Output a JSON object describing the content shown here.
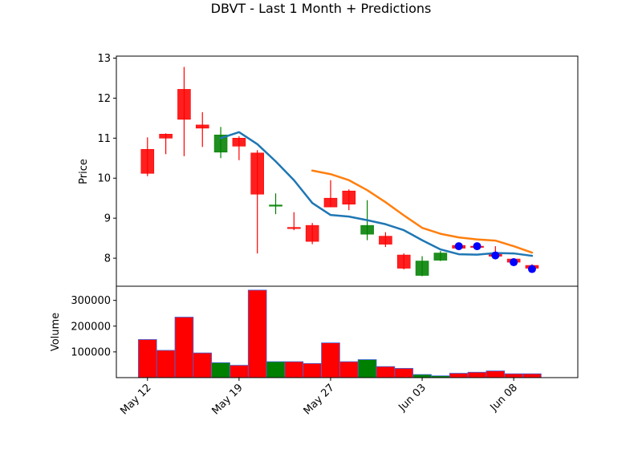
{
  "chart_data": {
    "type": "candlestick",
    "title": "DBVT - Last 1 Month + Predictions",
    "price_panel": {
      "ylabel": "Price",
      "ylim": [
        7.3,
        13.05
      ],
      "yticks": [
        8,
        9,
        10,
        11,
        12,
        13
      ],
      "candles": [
        {
          "x": 0,
          "open": 10.72,
          "high": 11.02,
          "low": 10.05,
          "close": 10.12
        },
        {
          "x": 1,
          "open": 11.1,
          "high": 11.12,
          "low": 10.6,
          "close": 11.0
        },
        {
          "x": 2,
          "open": 12.22,
          "high": 12.78,
          "low": 10.55,
          "close": 11.47
        },
        {
          "x": 3,
          "open": 11.33,
          "high": 11.65,
          "low": 10.78,
          "close": 11.25
        },
        {
          "x": 4,
          "open": 10.65,
          "high": 11.28,
          "low": 10.5,
          "close": 11.08
        },
        {
          "x": 5,
          "open": 11.0,
          "high": 11.05,
          "low": 10.45,
          "close": 10.8
        },
        {
          "x": 6,
          "open": 10.63,
          "high": 10.7,
          "low": 8.12,
          "close": 9.6
        },
        {
          "x": 7,
          "open": 9.3,
          "high": 9.62,
          "low": 9.1,
          "close": 9.33
        },
        {
          "x": 8,
          "open": 8.77,
          "high": 9.15,
          "low": 8.7,
          "close": 8.75
        },
        {
          "x": 9,
          "open": 8.82,
          "high": 8.88,
          "low": 8.35,
          "close": 8.42
        },
        {
          "x": 10,
          "open": 9.5,
          "high": 9.95,
          "low": 9.28,
          "close": 9.28
        },
        {
          "x": 11,
          "open": 9.68,
          "high": 9.72,
          "low": 9.2,
          "close": 9.35
        },
        {
          "x": 12,
          "open": 8.6,
          "high": 9.45,
          "low": 8.45,
          "close": 8.82
        },
        {
          "x": 13,
          "open": 8.55,
          "high": 8.65,
          "low": 8.28,
          "close": 8.35
        },
        {
          "x": 14,
          "open": 8.08,
          "high": 8.12,
          "low": 7.72,
          "close": 7.75
        },
        {
          "x": 15,
          "open": 7.57,
          "high": 8.05,
          "low": 7.55,
          "close": 7.93
        },
        {
          "x": 16,
          "open": 7.95,
          "high": 8.18,
          "low": 7.93,
          "close": 8.13
        },
        {
          "x": 17,
          "open": 8.32,
          "high": 8.35,
          "low": 8.22,
          "close": 8.25
        },
        {
          "x": 18,
          "open": 8.3,
          "high": 8.35,
          "low": 8.26,
          "close": 8.28
        },
        {
          "x": 19,
          "open": 8.13,
          "high": 8.3,
          "low": 7.98,
          "close": 8.05
        },
        {
          "x": 20,
          "open": 7.98,
          "high": 8.0,
          "low": 7.85,
          "close": 7.9
        },
        {
          "x": 21,
          "open": 7.82,
          "high": 7.85,
          "low": 7.68,
          "close": 7.75
        }
      ],
      "series": [
        {
          "color": "#1f77b4",
          "x": [
            4,
            5,
            6,
            7,
            8,
            9,
            10,
            11,
            12,
            13,
            14,
            15,
            16,
            17,
            18,
            19,
            20,
            21
          ],
          "values": [
            11.0,
            11.15,
            10.85,
            10.42,
            9.95,
            9.38,
            9.08,
            9.04,
            8.95,
            8.85,
            8.7,
            8.45,
            8.22,
            8.1,
            8.09,
            8.13,
            8.12,
            8.06
          ]
        },
        {
          "color": "#ff7f0e",
          "x": [
            9,
            10,
            11,
            12,
            13,
            14,
            15,
            16,
            17,
            18,
            19,
            20,
            21
          ],
          "values": [
            10.19,
            10.1,
            9.95,
            9.7,
            9.4,
            9.07,
            8.76,
            8.61,
            8.52,
            8.47,
            8.44,
            8.3,
            8.14
          ]
        }
      ],
      "predictions": {
        "color": "#0000ff",
        "x": [
          17,
          18,
          19,
          20,
          21
        ],
        "values": [
          8.3,
          8.3,
          8.07,
          7.9,
          7.73
        ]
      }
    },
    "volume_panel": {
      "ylabel": "Volume",
      "ylim": [
        0,
        355000
      ],
      "yticks": [
        100000,
        200000,
        300000
      ],
      "ytick_labels": [
        "100000",
        "200000",
        "300000"
      ],
      "values": [
        148000,
        106000,
        235000,
        96000,
        58000,
        48000,
        340000,
        62000,
        62000,
        55000,
        135000,
        62000,
        70000,
        43000,
        36000,
        12000,
        7000,
        17000,
        21000,
        26000,
        15000,
        15000
      ]
    },
    "x_ticks": [
      {
        "x": 0,
        "label": "May 12"
      },
      {
        "x": 5,
        "label": "May 19"
      },
      {
        "x": 10,
        "label": "May 27"
      },
      {
        "x": 15,
        "label": "Jun 03"
      },
      {
        "x": 20,
        "label": "Jun 08"
      }
    ],
    "xlim": [
      -1.7,
      23.5
    ],
    "colors": {
      "up": "#008000",
      "down": "#ff0000",
      "edge": "#4169e1"
    }
  }
}
